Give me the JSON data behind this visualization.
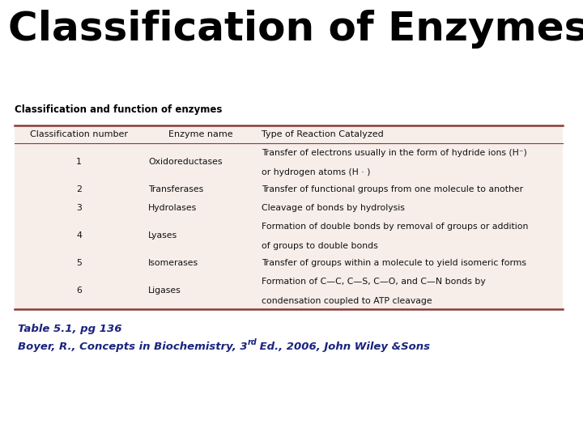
{
  "title": "Classification of Enzymes",
  "title_color": "#000000",
  "title_fontsize": 36,
  "title_fontweight": "bold",
  "table_label": "Classification and function of enzymes",
  "table_label_fontsize": 8.5,
  "table_label_color": "#000000",
  "border_color": "#8B3A3A",
  "table_bg": "#f7eeea",
  "col_headers": [
    "Classification number",
    "Enzyme name",
    "Type of Reaction Catalyzed"
  ],
  "col_header_fontsize": 8,
  "rows": [
    {
      "num": "1",
      "enzyme": "Oxidoreductases",
      "reaction": "Transfer of electrons usually in the form of hydride ions (H⁻)\nor hydrogen atoms (H · )"
    },
    {
      "num": "2",
      "enzyme": "Transferases",
      "reaction": "Transfer of functional groups from one molecule to another"
    },
    {
      "num": "3",
      "enzyme": "Hydrolases",
      "reaction": "Cleavage of bonds by hydrolysis"
    },
    {
      "num": "4",
      "enzyme": "Lyases",
      "reaction": "Formation of double bonds by removal of groups or addition\nof groups to double bonds"
    },
    {
      "num": "5",
      "enzyme": "Isomerases",
      "reaction": "Transfer of groups within a molecule to yield isomeric forms"
    },
    {
      "num": "6",
      "enzyme": "Ligases",
      "reaction": "Formation of C—C, C—S, C—O, and C—N bonds by\ncondensation coupled to ATP cleavage"
    }
  ],
  "row_fontsize": 7.8,
  "row_text_color": "#111111",
  "caption_line1": "Table 5.1, pg 136",
  "caption_line2_pre": "Boyer, R., Concepts in Biochemistry, 3",
  "caption_line2_sup": "rd",
  "caption_line2_post": " Ed., 2006, John Wiley &Sons",
  "caption_color": "#1a237e",
  "caption_fontsize": 9.5
}
